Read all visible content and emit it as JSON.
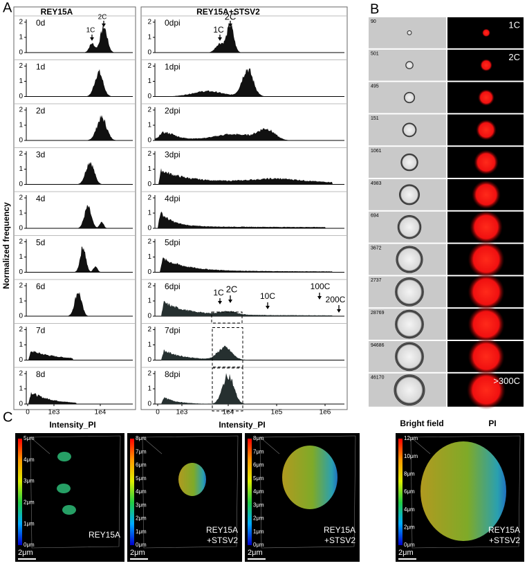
{
  "panel_a": {
    "label": "A",
    "y_axis_label": "Normalized frequency",
    "left": {
      "title": "REY15A",
      "rows": [
        "0d",
        "1d",
        "2d",
        "3d",
        "4d",
        "5d",
        "6d",
        "7d",
        "8d"
      ],
      "yticks": [
        "0",
        "1",
        "2"
      ],
      "xticks": [
        "0",
        "1e3",
        "1e4"
      ],
      "annotations_0d": [
        "1C",
        "2C"
      ]
    },
    "right": {
      "title": "REY15A+STSV2",
      "rows": [
        "0dpi",
        "1dpi",
        "2dpi",
        "3dpi",
        "4dpi",
        "5dpi",
        "6dpi",
        "7dpi",
        "8dpi"
      ],
      "yticks": [
        "0",
        "1",
        "2"
      ],
      "xticks": [
        "0",
        "1e3",
        "1e4",
        "1e5",
        "1e6"
      ],
      "annotations_0dpi": [
        "1C",
        "2C"
      ],
      "annotations_6dpi": [
        "1C",
        "2C",
        "10C",
        "100C",
        "200C"
      ]
    }
  },
  "panel_b": {
    "label": "B",
    "cells": [
      {
        "id": "90",
        "ploidy": "1C"
      },
      {
        "id": "501",
        "ploidy": "2C"
      },
      {
        "id": "495"
      },
      {
        "id": "151"
      },
      {
        "id": "1061"
      },
      {
        "id": "4983"
      },
      {
        "id": "694"
      },
      {
        "id": "3672"
      },
      {
        "id": "2737"
      },
      {
        "id": "28769"
      },
      {
        "id": "94686"
      },
      {
        "id": "46170",
        "ploidy": ">300C"
      }
    ]
  },
  "panel_c": {
    "label": "C",
    "headers": [
      "Intensity_PI",
      "Intensity_PI",
      "Bright field",
      "PI"
    ],
    "images": [
      {
        "colorbar": [
          "5μm",
          "4μm",
          "3μm",
          "2μm",
          "1μm",
          "0μm"
        ],
        "sample": [
          "REY15A"
        ],
        "scale_bar": "2μm"
      },
      {
        "colorbar": [
          "8μm",
          "7μm",
          "6μm",
          "5μm",
          "4μm",
          "3μm",
          "2μm",
          "1μm",
          "0μm"
        ],
        "sample": [
          "REY15A",
          "+STSV2"
        ],
        "scale_bar": "2μm"
      },
      {
        "colorbar": [
          "8μm",
          "7μm",
          "6μm",
          "5μm",
          "4μm",
          "3μm",
          "2μm",
          "1μm",
          "0μm"
        ],
        "sample": [
          "REY15A",
          "+STSV2"
        ],
        "scale_bar": "2μm"
      },
      {
        "colorbar": [
          "12μm",
          "10μm",
          "8μm",
          "6μm",
          "4μm",
          "2μm",
          "0μm"
        ],
        "sample": [
          "REY15A",
          "+STSV2"
        ],
        "scale_bar": "2μm"
      }
    ]
  }
}
